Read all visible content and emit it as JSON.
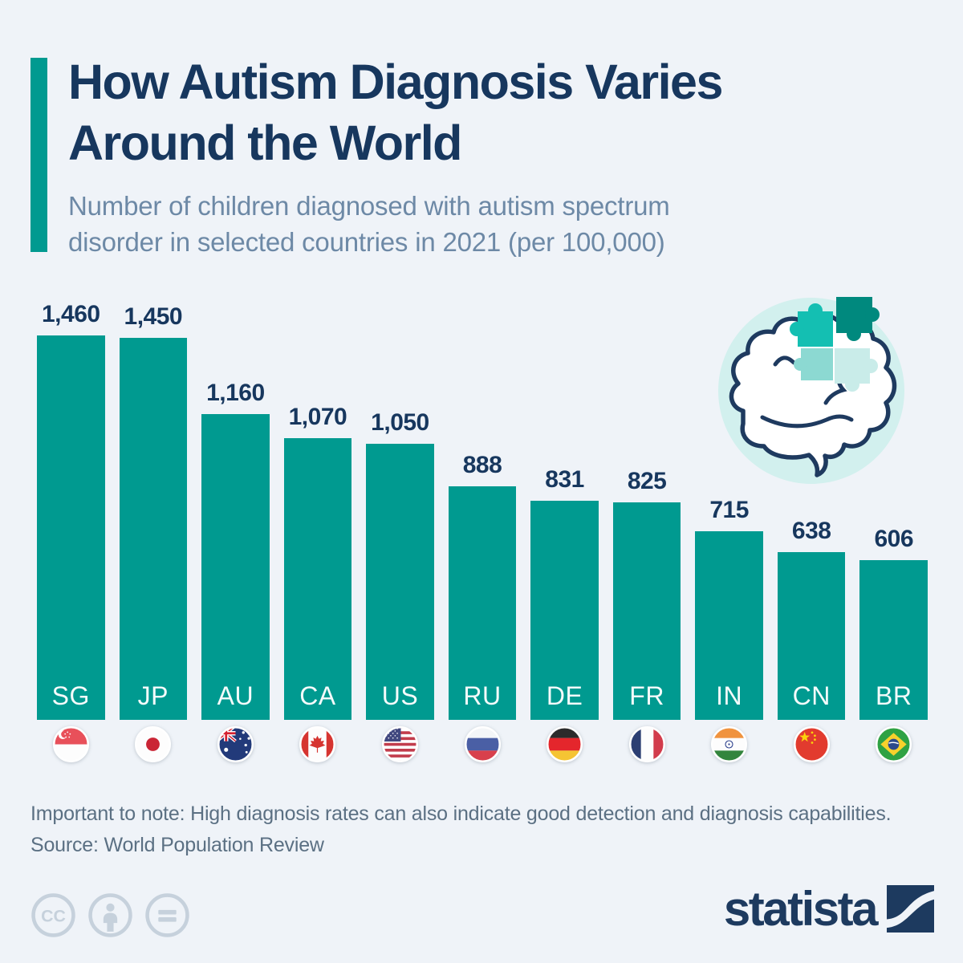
{
  "header": {
    "title_lines": [
      "How Autism Diagnosis Varies",
      "Around the World"
    ],
    "subtitle_lines": [
      "Number of children diagnosed with autism spectrum",
      "disorder in selected countries in 2021 (per 100,000)"
    ]
  },
  "chart_data": {
    "type": "bar",
    "title": "How Autism Diagnosis Varies Around the World",
    "subtitle": "Number of children diagnosed with autism spectrum disorder in selected countries in 2021 (per 100,000)",
    "categories": [
      "SG",
      "JP",
      "AU",
      "CA",
      "US",
      "RU",
      "DE",
      "FR",
      "IN",
      "CN",
      "BR"
    ],
    "values": [
      1460,
      1450,
      1160,
      1070,
      1050,
      888,
      831,
      825,
      715,
      638,
      606
    ],
    "value_labels": [
      "1,460",
      "1,450",
      "1,160",
      "1,070",
      "1,050",
      "888",
      "831",
      "825",
      "715",
      "638",
      "606"
    ],
    "flag_icons": [
      "flag-singapore-icon",
      "flag-japan-icon",
      "flag-australia-icon",
      "flag-canada-icon",
      "flag-united-states-icon",
      "flag-russia-icon",
      "flag-germany-icon",
      "flag-france-icon",
      "flag-india-icon",
      "flag-china-icon",
      "flag-brazil-icon"
    ],
    "ylim": [
      0,
      1460
    ],
    "grid": false,
    "legend": false,
    "bar_color": "#009a90",
    "value_label_color": "#17375e",
    "category_label_color": "#f4fbfb"
  },
  "illustration": {
    "name": "brain-with-puzzle-pieces-icon",
    "circle_color": "#d2f0ee",
    "outline_color": "#1e3a5f",
    "puzzle_colors": [
      "#14bfb2",
      "#00897e",
      "#8cd9d2",
      "#c9ece9"
    ]
  },
  "footer": {
    "note": "Important to note: High diagnosis rates can also indicate good detection and diagnosis capabilities.",
    "source": "Source: World Population Review"
  },
  "branding": {
    "logo_text": "statista",
    "logo_mark": "statista-swoosh-icon",
    "license_icons": [
      "cc-circle-icon",
      "attribution-person-icon",
      "equals-sign-icon"
    ]
  },
  "colors": {
    "background": "#eff3f8",
    "accent_teal": "#009a90",
    "title_navy": "#17375e",
    "subtitle_gray_blue": "#6d89a6",
    "footer_gray": "#5b7083",
    "license_gray": "#c6d1dc",
    "logo_navy": "#1d3a5f"
  }
}
